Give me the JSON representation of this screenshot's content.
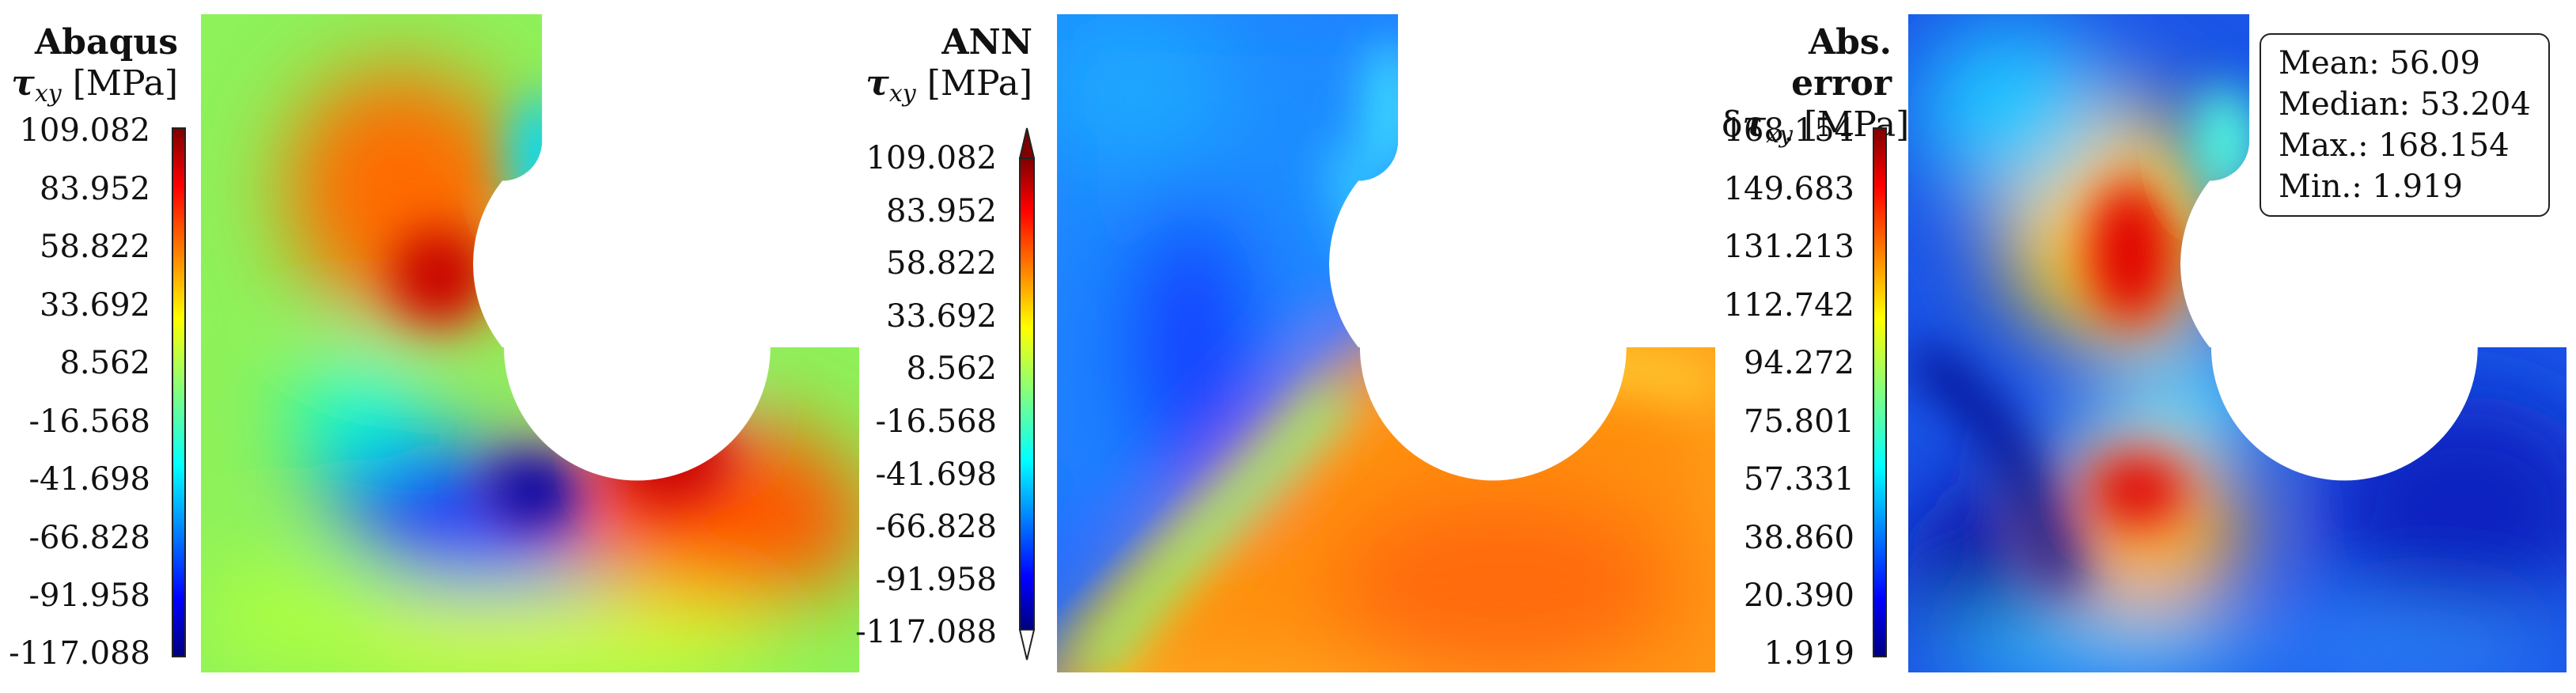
{
  "panels": [
    {
      "title": "Abaqus",
      "quantity": {
        "prefix": "",
        "symbol": "τ",
        "subscript": "xy",
        "unit": "[MPa]"
      },
      "colorbar": {
        "ticks": [
          "109.082",
          "83.952",
          "58.822",
          "33.692",
          "8.562",
          "-16.568",
          "-41.698",
          "-66.828",
          "-91.958",
          "-117.088"
        ],
        "extend_arrows": false
      }
    },
    {
      "title": "ANN",
      "quantity": {
        "prefix": "",
        "symbol": "τ",
        "subscript": "xy",
        "unit": "[MPa]"
      },
      "colorbar": {
        "ticks": [
          "109.082",
          "83.952",
          "58.822",
          "33.692",
          "8.562",
          "-16.568",
          "-41.698",
          "-66.828",
          "-91.958",
          "-117.088"
        ],
        "extend_arrows": true
      }
    },
    {
      "title": "Abs. error",
      "quantity": {
        "prefix": "δ",
        "symbol": "τ",
        "subscript": "xy",
        "unit": "[MPa]"
      },
      "colorbar": {
        "ticks": [
          "168.154",
          "149.683",
          "131.213",
          "112.742",
          "94.272",
          "75.801",
          "57.331",
          "38.860",
          "20.390",
          "1.919"
        ],
        "extend_arrows": false
      },
      "stats": {
        "mean": "Mean: 56.09",
        "median": "Median: 53.204",
        "max": "Max.: 168.154",
        "min": "Min.: 1.919"
      }
    }
  ],
  "colormap": "jet",
  "colors": {
    "background_green": "#8ef25a",
    "ann_background_orange": "#ff9a10",
    "ann_background_blue": "#1a8cff",
    "error_background_blue": "#1a55e8"
  }
}
